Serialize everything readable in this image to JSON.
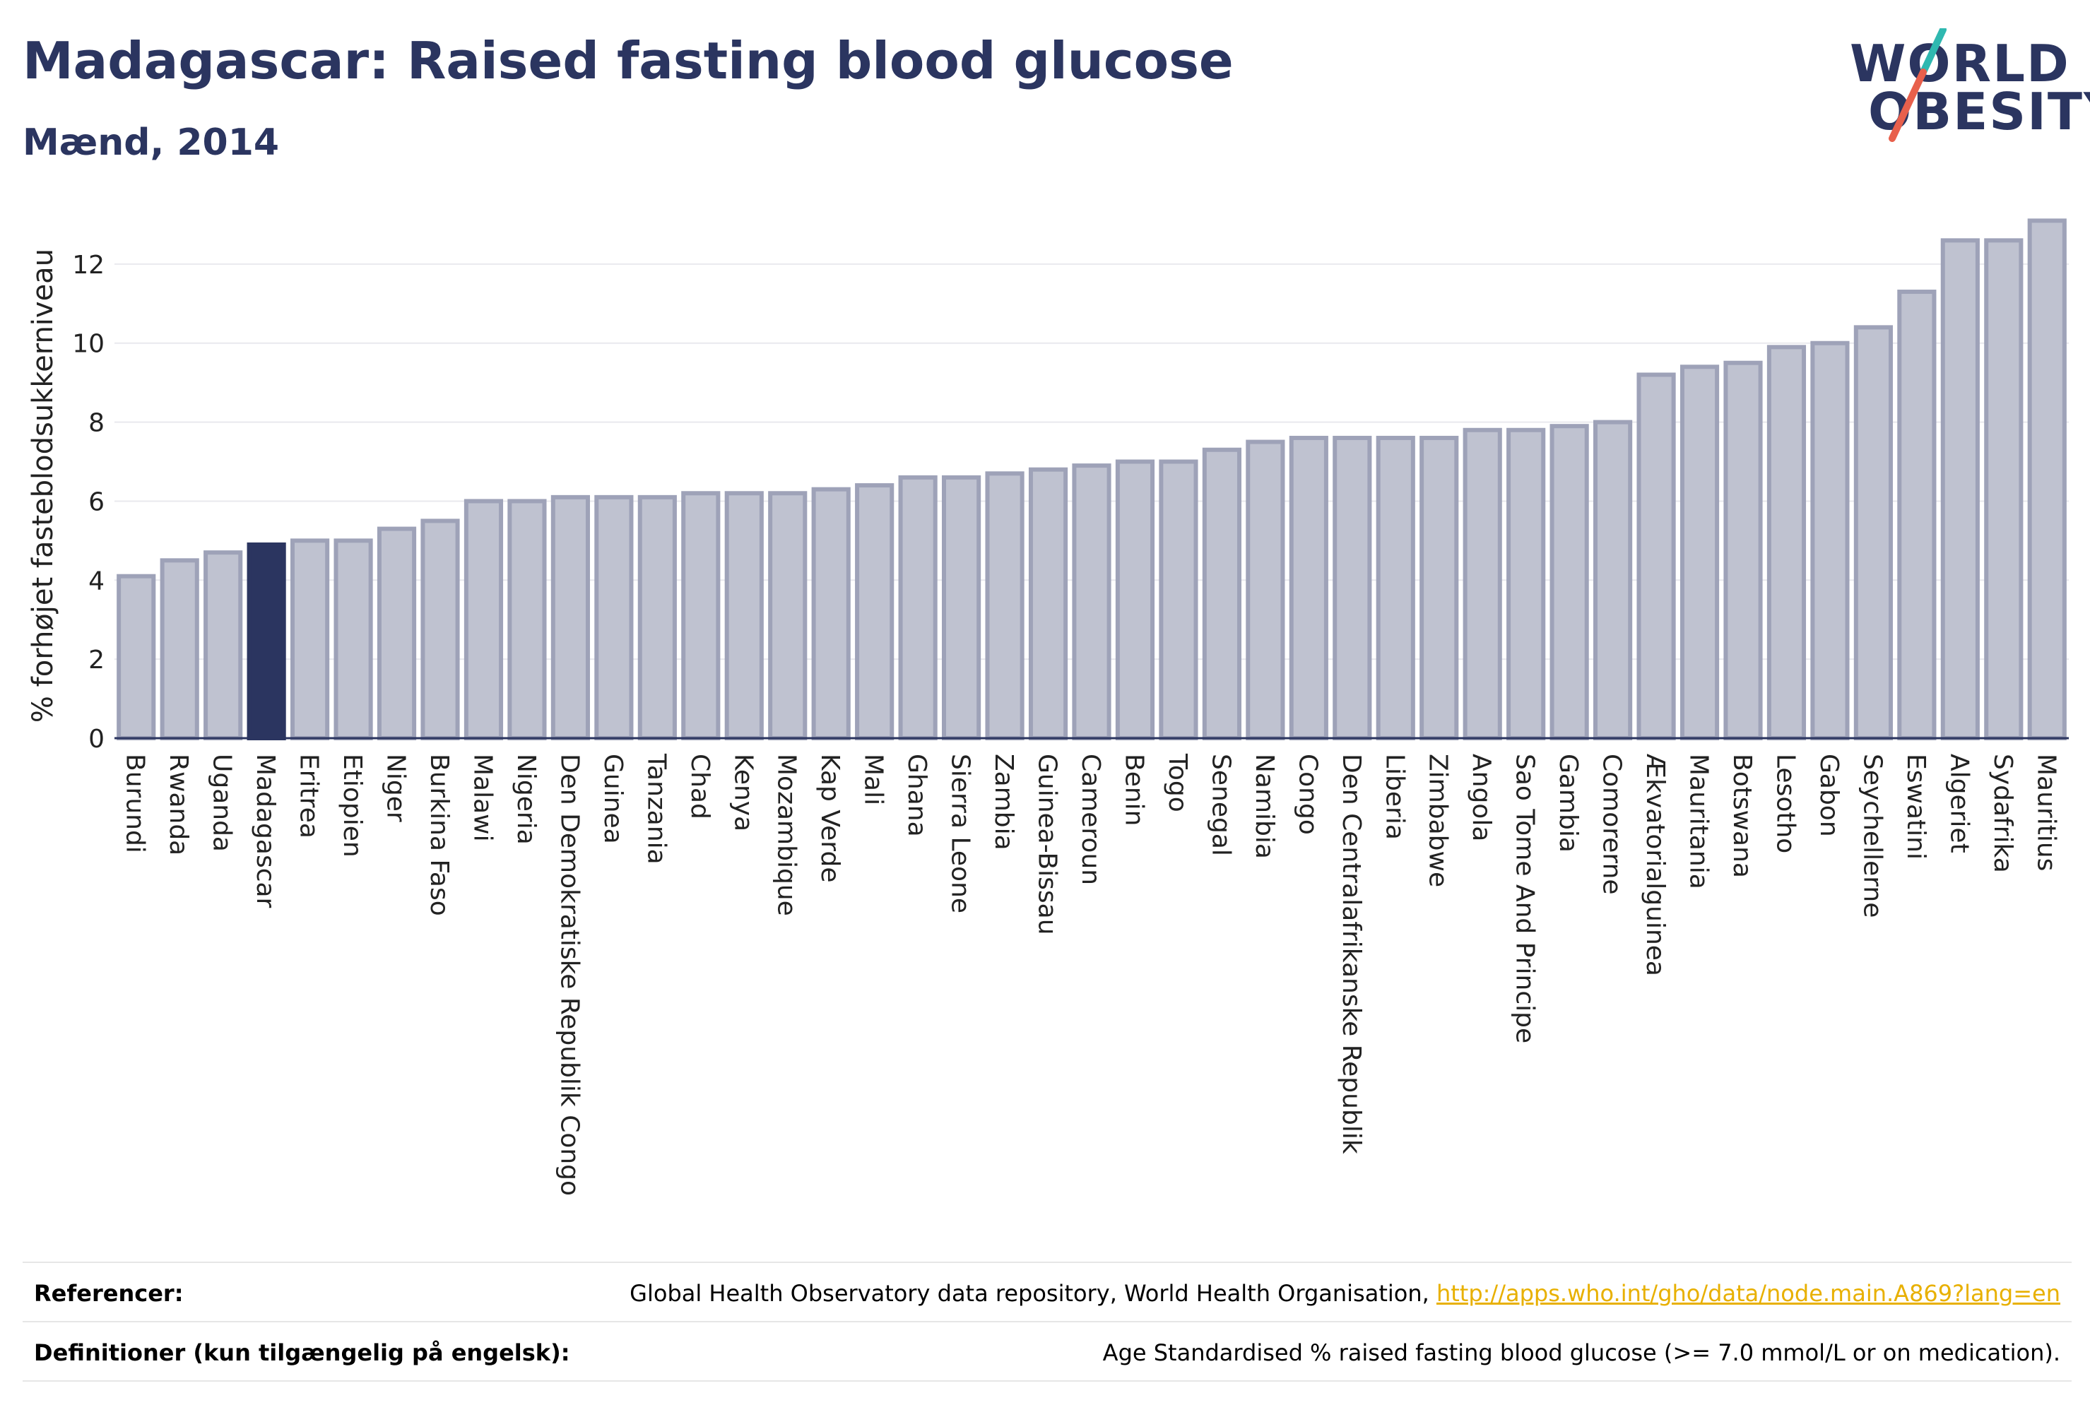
{
  "header": {
    "title": "Madagascar: Raised fasting blood glucose",
    "subtitle": "Mænd, 2014"
  },
  "logo": {
    "line1": "WORLD",
    "line2": "OBESITY",
    "slash_colors": [
      "#2fb8b0",
      "#e8604c"
    ]
  },
  "colors": {
    "bar": "#bfc2d0",
    "bar_border": "#9ea2b8",
    "highlight": "#2b3560",
    "grid": "#e9e9ee",
    "axis": "#2b3560"
  },
  "chart_data": {
    "type": "bar",
    "ylabel": "% forhøjet fasteblodsukkerniveau",
    "ylim": [
      0,
      13.5
    ],
    "yticks": [
      0,
      2,
      4,
      6,
      8,
      10,
      12
    ],
    "grid": true,
    "highlight": "Madagascar",
    "categories": [
      "Burundi",
      "Rwanda",
      "Uganda",
      "Madagascar",
      "Eritrea",
      "Etiopien",
      "Niger",
      "Burkina Faso",
      "Malawi",
      "Nigeria",
      "Den Demokratiske Republik Congo",
      "Guinea",
      "Tanzania",
      "Chad",
      "Kenya",
      "Mozambique",
      "Kap Verde",
      "Mali",
      "Ghana",
      "Sierra Leone",
      "Zambia",
      "Guinea-Bissau",
      "Cameroun",
      "Benin",
      "Togo",
      "Senegal",
      "Namibia",
      "Congo",
      "Den Centralafrikanske Republik",
      "Liberia",
      "Zimbabwe",
      "Angola",
      "Sao Tome And Principe",
      "Gambia",
      "Comorerne",
      "Ækvatorialguinea",
      "Mauritania",
      "Botswana",
      "Lesotho",
      "Gabon",
      "Seychellerne",
      "Eswatini",
      "Algeriet",
      "Sydafrika",
      "Mauritius"
    ],
    "values": [
      4.1,
      4.5,
      4.7,
      4.9,
      5.0,
      5.0,
      5.3,
      5.5,
      6.0,
      6.0,
      6.1,
      6.1,
      6.1,
      6.2,
      6.2,
      6.2,
      6.3,
      6.4,
      6.6,
      6.6,
      6.7,
      6.8,
      6.9,
      7.0,
      7.0,
      7.3,
      7.5,
      7.6,
      7.6,
      7.6,
      7.6,
      7.8,
      7.8,
      7.9,
      8.0,
      9.2,
      9.4,
      9.5,
      9.9,
      10.0,
      10.4,
      11.3,
      12.6,
      12.6,
      13.1
    ]
  },
  "footer": {
    "references_label": "Referencer:",
    "references_text": "Global Health Observatory data repository, World Health Organisation, ",
    "references_link": "http://apps.who.int/gho/data/node.main.A869?lang=en",
    "definitions_label": "Definitioner (kun tilgængelig på engelsk):",
    "definitions_text": "Age Standardised % raised fasting blood glucose (>= 7.0 mmol/L or on medication)."
  }
}
